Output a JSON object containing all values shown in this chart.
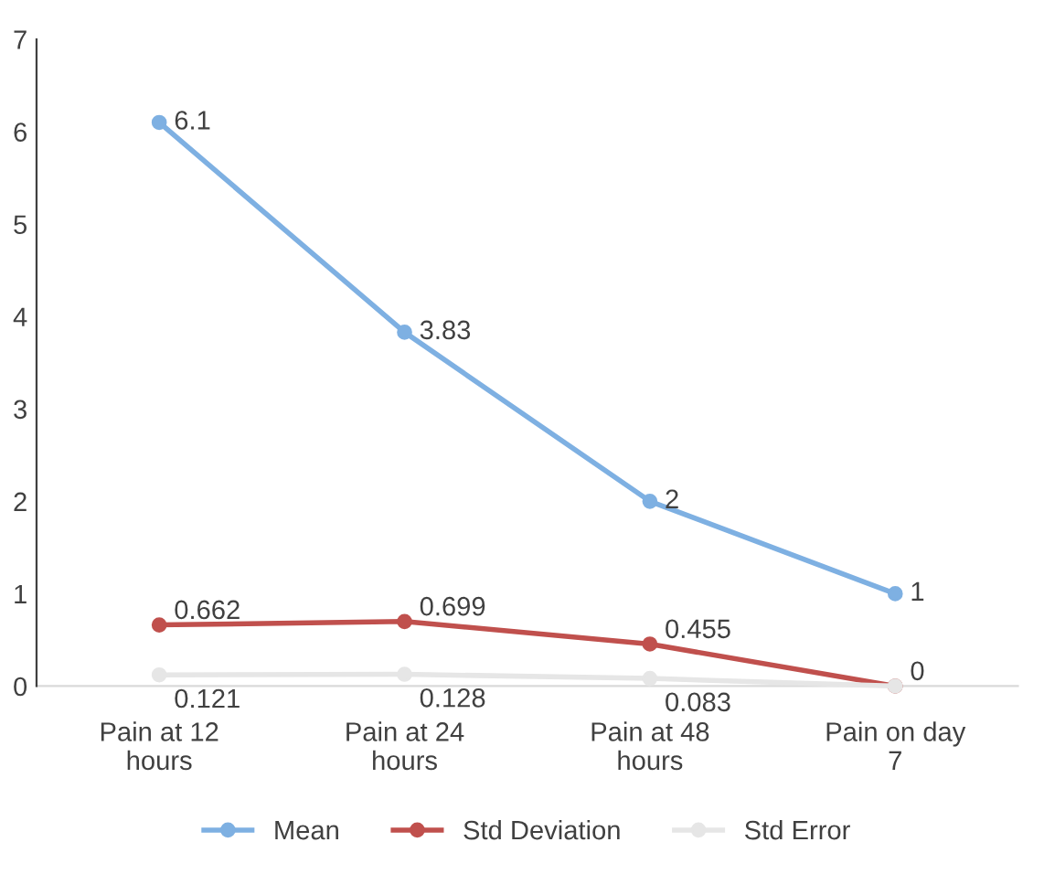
{
  "chart_data": {
    "type": "line",
    "categories": [
      "Pain at 12\nhours",
      "Pain at 24\nhours",
      "Pain at 48\nhours",
      "Pain on day\n7"
    ],
    "series": [
      {
        "name": "Mean",
        "color": "#7eb0e2",
        "values": [
          6.1,
          3.83,
          2,
          1
        ],
        "value_labels": [
          "6.1",
          "3.83",
          "2",
          "1"
        ]
      },
      {
        "name": "Std Deviation",
        "color": "#c0504d",
        "values": [
          0.662,
          0.699,
          0.455,
          0
        ],
        "value_labels": [
          "0.662",
          "0.699",
          "0.455",
          "0"
        ]
      },
      {
        "name": "Std Error",
        "color": "#e6e6e6",
        "values": [
          0.121,
          0.128,
          0.083,
          0
        ],
        "value_labels": [
          "0.121",
          "0.128",
          "0.083",
          null
        ]
      }
    ],
    "ylim": [
      0,
      7
    ],
    "yticks": [
      0,
      1,
      2,
      3,
      4,
      5,
      6,
      7
    ],
    "grid": false,
    "legend": "bottom",
    "marker": "circle",
    "line_style": "solid"
  }
}
